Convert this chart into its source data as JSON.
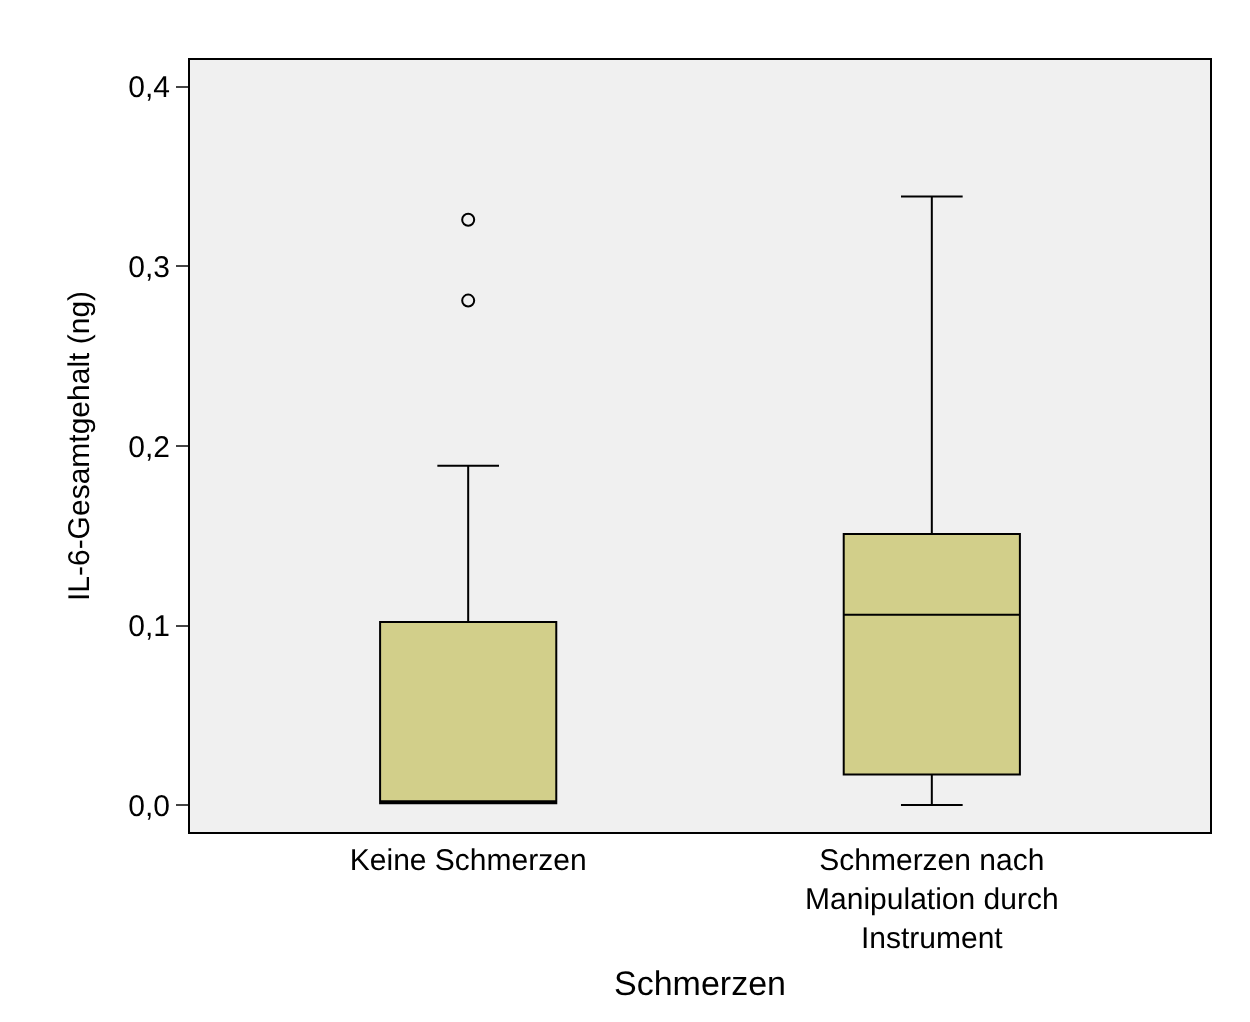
{
  "chart_data": {
    "type": "box",
    "xlabel": "Schmerzen",
    "ylabel": "IL-6-Gesamtgehalt (ng)",
    "categories": [
      "Keine Schmerzen",
      "Schmerzen nach\nManipulation durch\nInstrument"
    ],
    "boxes": [
      {
        "low": 0.001,
        "q1": 0.001,
        "median": 0.002,
        "q3": 0.102,
        "high": 0.189,
        "outliers": [
          0.281,
          0.326
        ]
      },
      {
        "low": 0.0,
        "q1": 0.017,
        "median": 0.106,
        "q3": 0.151,
        "high": 0.339
      }
    ],
    "color": "#d2cf8a",
    "ylim": [
      -0.015,
      0.415
    ],
    "yticks": [
      {
        "value": 0,
        "label": "0,0"
      },
      {
        "value": 0.1,
        "label": "0,1"
      },
      {
        "value": 0.2,
        "label": "0,2"
      },
      {
        "value": 0.3,
        "label": "0,3"
      },
      {
        "value": 0.4,
        "label": "0,4"
      }
    ],
    "grid": false
  }
}
